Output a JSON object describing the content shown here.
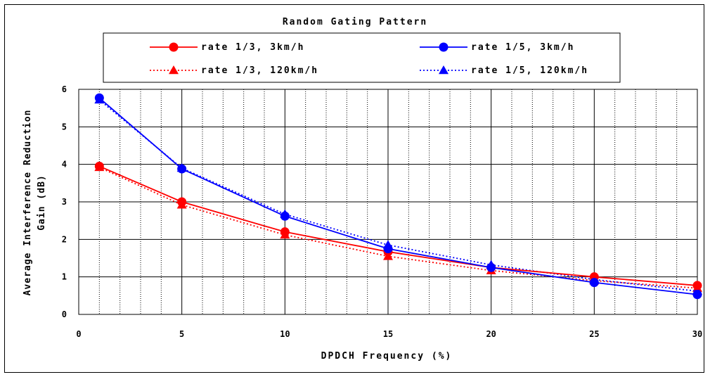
{
  "chart_data": {
    "type": "line",
    "title": "Random Gating Pattern",
    "xlabel": "DPDCH Frequency (%)",
    "ylabel_lines": [
      "Average Interference Reduction",
      "Gain (dB)"
    ],
    "xlim": [
      0,
      30
    ],
    "ylim": [
      0,
      6
    ],
    "x_ticks": [
      "0",
      "5",
      "10",
      "15",
      "20",
      "25",
      "30"
    ],
    "y_ticks": [
      "0",
      "1",
      "2",
      "3",
      "4",
      "5",
      "6"
    ],
    "x_minor_step": 1,
    "grid": true,
    "legend_position": "top",
    "x": [
      1,
      5,
      10,
      15,
      20,
      25,
      30
    ],
    "series": [
      {
        "name": "rate 1/3, 3km/h",
        "values": [
          3.95,
          3.0,
          2.2,
          1.67,
          1.25,
          1.0,
          0.77
        ],
        "color": "#ff0000",
        "line": "solid",
        "marker": "circle"
      },
      {
        "name": "rate 1/5, 3km/h",
        "values": [
          5.77,
          3.88,
          2.62,
          1.75,
          1.25,
          0.85,
          0.53
        ],
        "color": "#0000ff",
        "line": "solid",
        "marker": "circle"
      },
      {
        "name": "rate 1/3, 120km/h",
        "values": [
          3.92,
          2.92,
          2.12,
          1.55,
          1.17,
          0.9,
          0.7
        ],
        "color": "#ff0000",
        "line": "dotted",
        "marker": "triangle"
      },
      {
        "name": "rate 1/5, 120km/h",
        "values": [
          5.72,
          3.9,
          2.67,
          1.85,
          1.32,
          0.93,
          0.62
        ],
        "color": "#0000ff",
        "line": "dotted",
        "marker": "triangle"
      }
    ]
  }
}
